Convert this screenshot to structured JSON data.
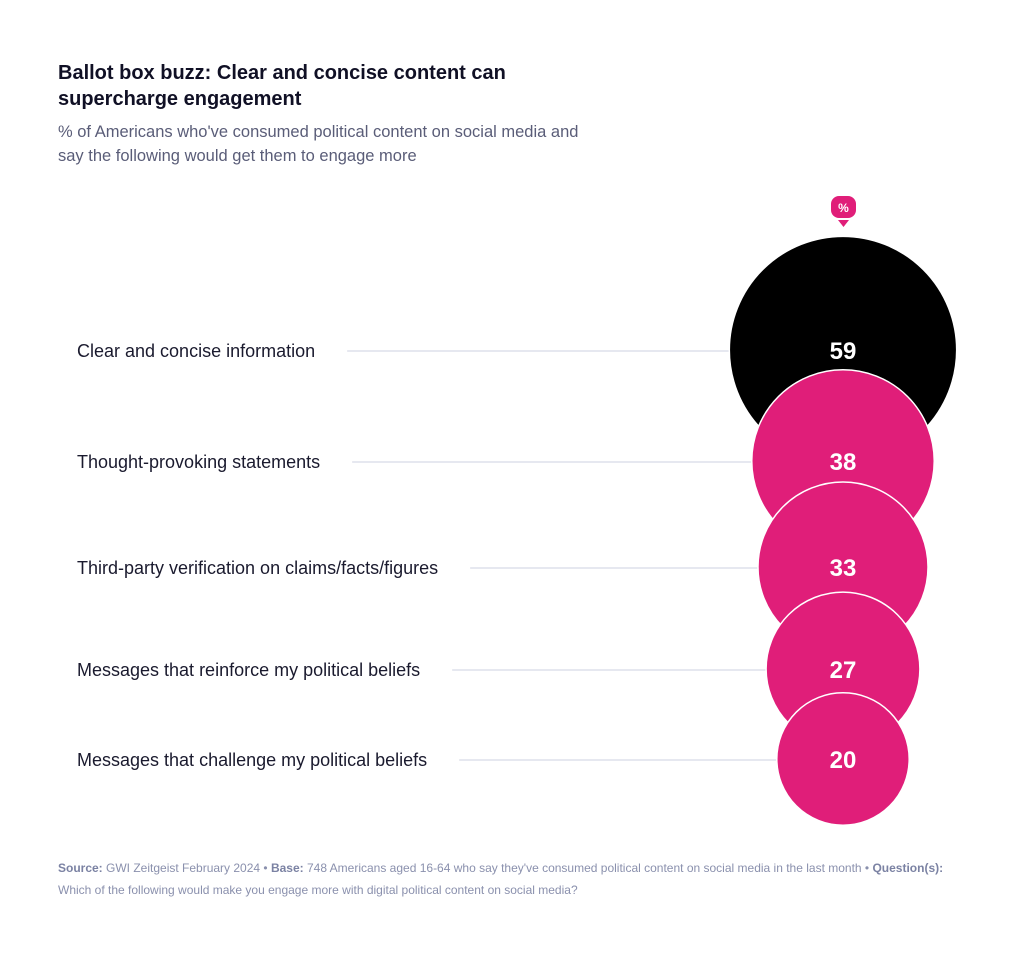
{
  "title": "Ballot box buzz: Clear and concise content can supercharge engagement",
  "subtitle": "% of Americans who've consumed political content on social media and say the following would get them to engage more",
  "chart_data": {
    "type": "bubble",
    "unit_marker": "%",
    "categories": [
      "Clear and concise information",
      "Thought-provoking statements",
      "Third-party verification on claims/facts/figures",
      "Messages that reinforce my political beliefs",
      "Messages that challenge my political beliefs"
    ],
    "values": [
      59,
      38,
      33,
      27,
      20
    ],
    "colors": [
      "#000000",
      "#e01e79",
      "#e01e79",
      "#e01e79",
      "#e01e79"
    ]
  },
  "footer": {
    "source_label": "Source:",
    "source": " GWI Zeitgeist February 2024 • ",
    "base_label": "Base:",
    "base": " 748 Americans aged 16-64 who say they've consumed political content on social media in the last month • ",
    "question_label": "Question(s):",
    "question": " Which of the following would make you engage more with digital political content on social media?"
  }
}
